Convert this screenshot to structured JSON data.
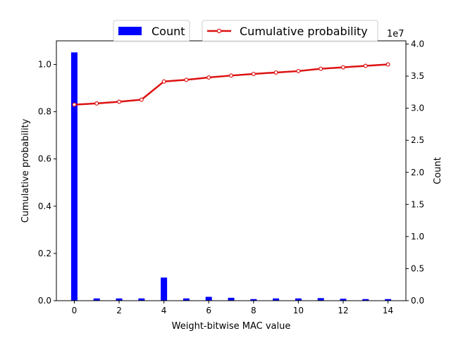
{
  "chart_data": {
    "type": "bar",
    "xlabel": "Weight-bitwise MAC value",
    "ylabel_left": "Cumulative probability",
    "ylabel_right": "Count",
    "right_axis_offset_label": "1e7",
    "x": [
      0,
      1,
      2,
      3,
      4,
      5,
      6,
      7,
      8,
      9,
      10,
      11,
      12,
      13,
      14
    ],
    "xlim": [
      -0.8,
      14.8
    ],
    "x_ticks": [
      0,
      2,
      4,
      6,
      8,
      10,
      12,
      14
    ],
    "ylim_left": [
      0,
      1.1
    ],
    "y_ticks_left": [
      0.0,
      0.2,
      0.4,
      0.6,
      0.8,
      1.0
    ],
    "ylim_right": [
      0,
      4.05
    ],
    "y_ticks_right": [
      0.0,
      0.5,
      1.0,
      1.5,
      2.0,
      2.5,
      3.0,
      3.5,
      4.0
    ],
    "series": [
      {
        "name": "Count",
        "kind": "bar",
        "axis": "right",
        "color": "#0000ff",
        "values": [
          3.87,
          0.035,
          0.035,
          0.035,
          0.36,
          0.035,
          0.06,
          0.045,
          0.025,
          0.035,
          0.035,
          0.04,
          0.03,
          0.025,
          0.025
        ]
      },
      {
        "name": "Cumulative probability",
        "kind": "line",
        "axis": "left",
        "color": "#dd1111",
        "values": [
          0.83,
          0.835,
          0.842,
          0.851,
          0.928,
          0.935,
          0.945,
          0.953,
          0.96,
          0.966,
          0.972,
          0.982,
          0.988,
          0.994,
          1.0
        ]
      }
    ],
    "legend_placement": "top-center",
    "grid": false
  }
}
